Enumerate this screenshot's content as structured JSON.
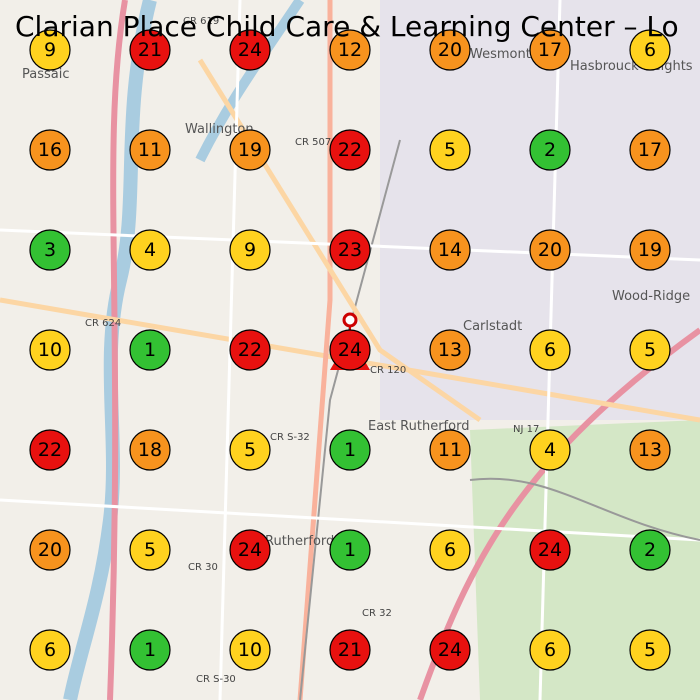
{
  "title": "Clarian Place Child Care & Learning Center – Lo",
  "place_labels": [
    "Passaic",
    "Wallington",
    "Hasbrouck Heights",
    "Wood-Ridge",
    "Carlstadt",
    "East Rutherford",
    "Rutherford",
    "Wesmont",
    "CR 507",
    "CR 624",
    "CR 120",
    "CR S-32",
    "NJ 17",
    "CR 30",
    "CR 32",
    "CR S-30",
    "CR 619"
  ],
  "markers": [
    [
      {
        "value": 9,
        "color": "#ffd21f"
      },
      {
        "value": 21,
        "color": "#e8110f"
      },
      {
        "value": 24,
        "color": "#e8110f"
      },
      {
        "value": 12,
        "color": "#f7931e"
      },
      {
        "value": 20,
        "color": "#f7931e"
      },
      {
        "value": 17,
        "color": "#f7931e"
      },
      {
        "value": 6,
        "color": "#ffd21f"
      }
    ],
    [
      {
        "value": 16,
        "color": "#f7931e"
      },
      {
        "value": 11,
        "color": "#f7931e"
      },
      {
        "value": 19,
        "color": "#f7931e"
      },
      {
        "value": 22,
        "color": "#e8110f"
      },
      {
        "value": 5,
        "color": "#ffd21f"
      },
      {
        "value": 2,
        "color": "#33c133"
      },
      {
        "value": 17,
        "color": "#f7931e"
      }
    ],
    [
      {
        "value": 3,
        "color": "#33c133"
      },
      {
        "value": 4,
        "color": "#ffd21f"
      },
      {
        "value": 9,
        "color": "#ffd21f"
      },
      {
        "value": 23,
        "color": "#e8110f"
      },
      {
        "value": 14,
        "color": "#f7931e"
      },
      {
        "value": 20,
        "color": "#f7931e"
      },
      {
        "value": 19,
        "color": "#f7931e"
      }
    ],
    [
      {
        "value": 10,
        "color": "#ffd21f"
      },
      {
        "value": 1,
        "color": "#33c133"
      },
      {
        "value": 22,
        "color": "#e8110f"
      },
      {
        "value": 24,
        "color": "#e8110f"
      },
      {
        "value": 13,
        "color": "#f7931e"
      },
      {
        "value": 6,
        "color": "#ffd21f"
      },
      {
        "value": 5,
        "color": "#ffd21f"
      }
    ],
    [
      {
        "value": 22,
        "color": "#e8110f"
      },
      {
        "value": 18,
        "color": "#f7931e"
      },
      {
        "value": 5,
        "color": "#ffd21f"
      },
      {
        "value": 1,
        "color": "#33c133"
      },
      {
        "value": 11,
        "color": "#f7931e"
      },
      {
        "value": 4,
        "color": "#ffd21f"
      },
      {
        "value": 13,
        "color": "#f7931e"
      }
    ],
    [
      {
        "value": 20,
        "color": "#f7931e"
      },
      {
        "value": 5,
        "color": "#ffd21f"
      },
      {
        "value": 24,
        "color": "#e8110f"
      },
      {
        "value": 1,
        "color": "#33c133"
      },
      {
        "value": 6,
        "color": "#ffd21f"
      },
      {
        "value": 24,
        "color": "#e8110f"
      },
      {
        "value": 2,
        "color": "#33c133"
      }
    ],
    [
      {
        "value": 6,
        "color": "#ffd21f"
      },
      {
        "value": 1,
        "color": "#33c133"
      },
      {
        "value": 10,
        "color": "#ffd21f"
      },
      {
        "value": 21,
        "color": "#e8110f"
      },
      {
        "value": 24,
        "color": "#e8110f"
      },
      {
        "value": 6,
        "color": "#ffd21f"
      },
      {
        "value": 5,
        "color": "#ffd21f"
      }
    ]
  ]
}
